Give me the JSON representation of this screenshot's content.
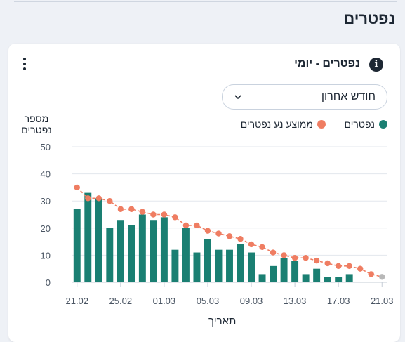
{
  "page": {
    "section_title": "נפטרים"
  },
  "card": {
    "title": "נפטרים - יומי",
    "info_icon": "i",
    "range_select": {
      "value": "חודש אחרון"
    }
  },
  "legend": {
    "bars_label": "נפטרים",
    "line_label": "ממוצע נע נפטרים"
  },
  "colors": {
    "bars": "#1a7f72",
    "line": "#ef7d62",
    "last_point": "#b8b8b8",
    "grid": "#e3e7ed"
  },
  "chart_data": {
    "type": "bar",
    "ylabel": "מספר נפטרים",
    "xlabel": "תאריך",
    "ylim": [
      0,
      50
    ],
    "y_ticks": [
      0,
      10,
      20,
      30,
      40,
      50
    ],
    "x_tick_labels": [
      "21.02",
      "25.02",
      "01.03",
      "05.03",
      "09.03",
      "13.03",
      "17.03",
      "21.03"
    ],
    "categories": [
      "21.02",
      "22.02",
      "23.02",
      "24.02",
      "25.02",
      "26.02",
      "27.02",
      "28.02",
      "01.03",
      "02.03",
      "03.03",
      "04.03",
      "05.03",
      "06.03",
      "07.03",
      "08.03",
      "09.03",
      "10.03",
      "11.03",
      "12.03",
      "13.03",
      "14.03",
      "15.03",
      "16.03",
      "17.03",
      "18.03",
      "19.03",
      "20.03",
      "21.03"
    ],
    "series": [
      {
        "name": "נפטרים",
        "type": "bar",
        "values": [
          27,
          33,
          31,
          20,
          23,
          21,
          25,
          23,
          24,
          12,
          20,
          11,
          16,
          12,
          12,
          14,
          11,
          3,
          6,
          9,
          8,
          3,
          5,
          2,
          2,
          3,
          null,
          null,
          null
        ]
      },
      {
        "name": "ממוצע נע נפטרים",
        "type": "line",
        "values": [
          35,
          31,
          31,
          30,
          27,
          27,
          26,
          25,
          25,
          24,
          21,
          21,
          19,
          18,
          17,
          16,
          14,
          13,
          11,
          10,
          9,
          9,
          8,
          7,
          6,
          6,
          5,
          3,
          2
        ]
      }
    ]
  }
}
